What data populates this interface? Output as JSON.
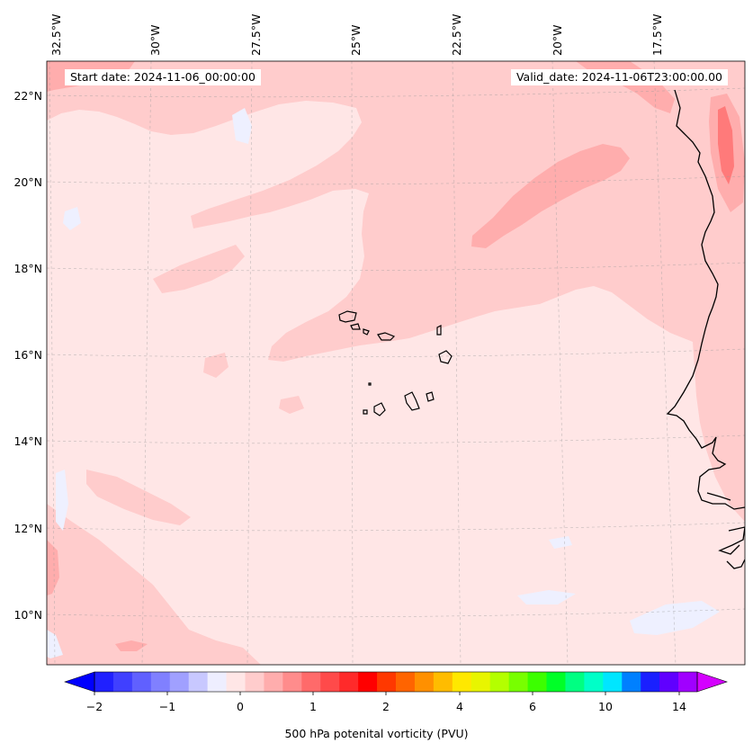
{
  "map": {
    "start_date": "Start date: 2024-11-06_00:00:00",
    "valid_date": "Valid_date: 2024-11-06T23:00:00.00",
    "lon_labels": [
      "32.5°W",
      "30°W",
      "27.5°W",
      "25°W",
      "22.5°W",
      "20°W",
      "17.5°W"
    ],
    "lat_labels": [
      "22°N",
      "20°N",
      "18°N",
      "16°N",
      "14°N",
      "12°N",
      "10°N"
    ],
    "features": [
      "coastline-west-africa",
      "cape-verde-islands"
    ],
    "background_color": "#ffe6e6",
    "colors": {
      "light_pink": "#ffcccc",
      "pink": "#ffadad",
      "red_pink": "#ff7a7a",
      "light_blue": "#eef0ff"
    }
  },
  "colorbar": {
    "label": "500 hPa potenital vorticity (PVU)",
    "tick_labels": [
      "−2",
      "−1",
      "0",
      "1",
      "2",
      "4",
      "6",
      "10",
      "14"
    ],
    "colors": [
      "#0000ff",
      "#2020ff",
      "#4040ff",
      "#6060ff",
      "#8080ff",
      "#a0a0ff",
      "#c8c8ff",
      "#eeeeff",
      "#ffe6e6",
      "#ffcccc",
      "#ffadad",
      "#ff8c8c",
      "#ff6a6a",
      "#ff4a4a",
      "#ff2a2a",
      "#ff0000",
      "#ff3800",
      "#ff6400",
      "#ff9000",
      "#ffbc00",
      "#ffe800",
      "#e8f500",
      "#b4ff00",
      "#78ff00",
      "#3cff00",
      "#00ff28",
      "#00ff82",
      "#00ffc8",
      "#00e6ff",
      "#0080ff",
      "#1a20ff",
      "#6000ff",
      "#a000ff",
      "#d400ff"
    ]
  }
}
